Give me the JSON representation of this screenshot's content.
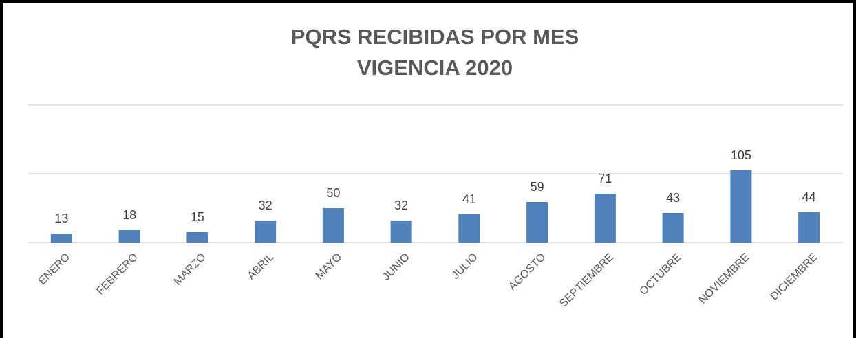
{
  "chart_data": {
    "type": "bar",
    "title": "PQRS RECIBIDAS POR MES",
    "subtitle": "VIGENCIA 2020",
    "categories": [
      "ENERO",
      "FEBRERO",
      "MARZO",
      "ABRIL",
      "MAYO",
      "JUNIO",
      "JULIO",
      "AGOSTO",
      "SEPTIEMBRE",
      "OCTUBRE",
      "NOVIEMBRE",
      "DICIEMBRE"
    ],
    "values": [
      13,
      18,
      15,
      32,
      50,
      32,
      41,
      59,
      71,
      43,
      105,
      44
    ],
    "color": "#4f81bd",
    "ylim": [
      0,
      200
    ],
    "yticks": [
      0,
      100,
      200
    ],
    "grid": true
  }
}
